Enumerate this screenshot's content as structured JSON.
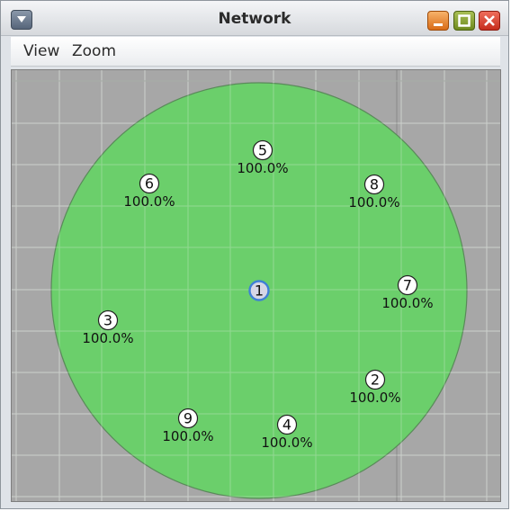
{
  "window": {
    "title": "Network"
  },
  "menubar": {
    "items": [
      "View",
      "Zoom"
    ]
  },
  "network": {
    "range_color": "#6bcf6b",
    "background_color": "#a7a7a7",
    "selected_node_color": "#3f7fd6",
    "nodes": [
      {
        "id": "1",
        "selected": true,
        "label": ""
      },
      {
        "id": "2",
        "selected": false,
        "label": "100.0%"
      },
      {
        "id": "3",
        "selected": false,
        "label": "100.0%"
      },
      {
        "id": "4",
        "selected": false,
        "label": "100.0%"
      },
      {
        "id": "5",
        "selected": false,
        "label": "100.0%"
      },
      {
        "id": "6",
        "selected": false,
        "label": "100.0%"
      },
      {
        "id": "7",
        "selected": false,
        "label": "100.0%"
      },
      {
        "id": "8",
        "selected": false,
        "label": "100.0%"
      },
      {
        "id": "9",
        "selected": false,
        "label": "100.0%"
      }
    ]
  },
  "icons": {
    "system_menu": "chevron-down-icon",
    "minimize": "minimize-icon",
    "maximize": "maximize-icon",
    "close": "close-icon"
  }
}
